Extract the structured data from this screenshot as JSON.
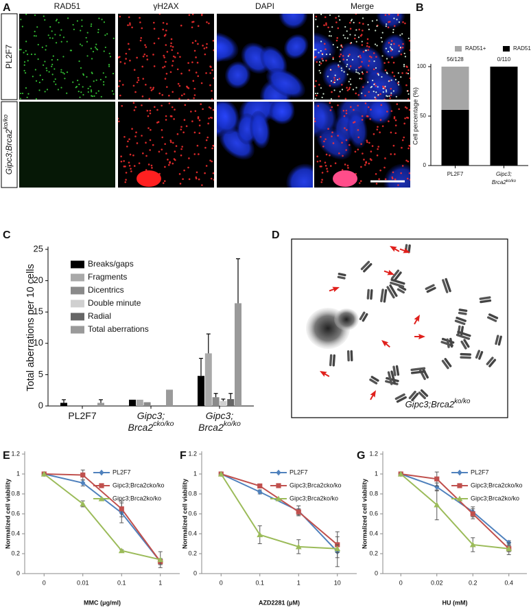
{
  "images": {
    "A": {
      "panel_label": "A",
      "column_headers": [
        "RAD51",
        "γH2AX",
        "DAPI",
        "Merge"
      ],
      "row_labels": [
        "PL2F7",
        "Gipc3;Brca2ko/ko"
      ]
    },
    "D": {
      "panel_label": "D",
      "caption": "Gipc3;Brca2ko/ko"
    }
  },
  "chart_data": [
    {
      "type": "bar",
      "panel_label": "B",
      "stacked": true,
      "categories": [
        "PL2F7",
        "Gipc3; Brca2ko/ko"
      ],
      "series": [
        {
          "name": "RAD51+",
          "color": "#a6a6a6",
          "values": [
            43.75,
            0
          ]
        },
        {
          "name": "RAD51-",
          "color": "#000000",
          "values": [
            56.25,
            100
          ]
        }
      ],
      "annotations": [
        "56/128",
        "0/110"
      ],
      "ylabel": "Cell percentage (%)",
      "ylim": [
        0,
        100
      ],
      "yticks": [
        0,
        50,
        100
      ],
      "legend": "top"
    },
    {
      "type": "bar",
      "panel_label": "C",
      "stacked": false,
      "categories": [
        "PL2F7",
        "Gipc3; Brca2cko/ko",
        "Gipc3; Brca2ko/ko"
      ],
      "series": [
        {
          "name": "Breaks/gaps",
          "color": "#000000",
          "values": [
            0.5,
            1.0,
            4.8
          ],
          "errors": [
            0.5,
            null,
            2.8
          ]
        },
        {
          "name": "Fragments",
          "color": "#a9a9a9",
          "values": [
            0,
            1.0,
            8.4
          ],
          "errors": [
            null,
            null,
            3.1
          ]
        },
        {
          "name": "Dicentrics",
          "color": "#8a8a8a",
          "values": [
            0,
            0.6,
            1.4
          ],
          "errors": [
            null,
            null,
            0.6
          ]
        },
        {
          "name": "Double minute",
          "color": "#d0d0d0",
          "values": [
            0,
            0,
            0.8
          ],
          "errors": [
            null,
            null,
            0.3
          ]
        },
        {
          "name": "Radial",
          "color": "#666666",
          "values": [
            0,
            0,
            1.1
          ],
          "errors": [
            null,
            null,
            0.9
          ]
        },
        {
          "name": "Total aberrations",
          "color": "#9a9a9a",
          "values": [
            0.5,
            2.6,
            16.4
          ],
          "errors": [
            0.5,
            null,
            7.1
          ]
        }
      ],
      "ylabel": "Total aberrations per 10 cells",
      "ylim": [
        0,
        25
      ],
      "yticks": [
        0,
        5,
        10,
        15,
        20,
        25
      ],
      "legend": "top-left"
    },
    {
      "type": "line",
      "panel_label": "E",
      "categories": [
        "0",
        "0.01",
        "0.1",
        "1"
      ],
      "xlabel": "MMC (μg/ml)",
      "series": [
        {
          "name": "PL2F7",
          "color": "#4f81bd",
          "marker": "diamond",
          "values": [
            1,
            0.91,
            0.61,
            0.12
          ],
          "errors": [
            0,
            0.03,
            0.1,
            0.03
          ]
        },
        {
          "name": "Gipc3;Brca2cko/ko",
          "color": "#c0504d",
          "marker": "square",
          "values": [
            1,
            0.99,
            0.65,
            0.12
          ],
          "errors": [
            0,
            0.05,
            0.08,
            0.03
          ]
        },
        {
          "name": "Gipc3;Brca2ko/ko",
          "color": "#9bbb59",
          "marker": "triangle",
          "values": [
            1,
            0.7,
            0.23,
            0.14
          ],
          "errors": [
            0,
            0.03,
            0.01,
            0.08
          ]
        }
      ],
      "ylabel": "Normalized cell viability",
      "ylim": [
        0,
        1.2
      ],
      "yticks": [
        0,
        0.2,
        0.4,
        0.6,
        0.8,
        1,
        1.2
      ],
      "legend": "top-right"
    },
    {
      "type": "line",
      "panel_label": "F",
      "categories": [
        "0",
        "0.1",
        "1",
        "10"
      ],
      "xlabel": "AZD2281 (μM)",
      "series": [
        {
          "name": "PL2F7",
          "color": "#4f81bd",
          "marker": "diamond",
          "values": [
            1,
            0.82,
            0.63,
            0.22
          ],
          "errors": [
            0,
            0.02,
            0.05,
            0.15
          ]
        },
        {
          "name": "Gipc3;Brca2cko/ko",
          "color": "#c0504d",
          "marker": "square",
          "values": [
            1,
            0.88,
            0.62,
            0.29
          ],
          "errors": [
            0,
            0.02,
            0.03,
            0.13
          ]
        },
        {
          "name": "Gipc3;Brca2ko/ko",
          "color": "#9bbb59",
          "marker": "triangle",
          "values": [
            1,
            0.39,
            0.27,
            0.25
          ],
          "errors": [
            0,
            0.09,
            0.07,
            0.04
          ]
        }
      ],
      "ylabel": "Normalized cell viability",
      "ylim": [
        0,
        1.2
      ],
      "yticks": [
        0,
        0.2,
        0.4,
        0.6,
        0.8,
        1,
        1.2
      ],
      "legend": "top-right"
    },
    {
      "type": "line",
      "panel_label": "G",
      "categories": [
        "0",
        "0.02",
        "0.2",
        "0.4"
      ],
      "xlabel": "HU (mM)",
      "series": [
        {
          "name": "PL2F7",
          "color": "#4f81bd",
          "marker": "diamond",
          "values": [
            1,
            0.87,
            0.62,
            0.31
          ],
          "errors": [
            0,
            0.04,
            0.05,
            0.02
          ]
        },
        {
          "name": "Gipc3;Brca2cko/ko",
          "color": "#c0504d",
          "marker": "square",
          "values": [
            1,
            0.95,
            0.6,
            0.25
          ],
          "errors": [
            0,
            0.07,
            0.05,
            0.06
          ]
        },
        {
          "name": "Gipc3;Brca2ko/ko",
          "color": "#9bbb59",
          "marker": "triangle",
          "values": [
            1,
            0.69,
            0.29,
            0.25
          ],
          "errors": [
            0,
            0.15,
            0.07,
            0.03
          ]
        }
      ],
      "ylabel": "Normalized cell viability",
      "ylim": [
        0,
        1.2
      ],
      "yticks": [
        0,
        0.2,
        0.4,
        0.6,
        0.8,
        1,
        1.2
      ],
      "legend": "top-right"
    }
  ]
}
